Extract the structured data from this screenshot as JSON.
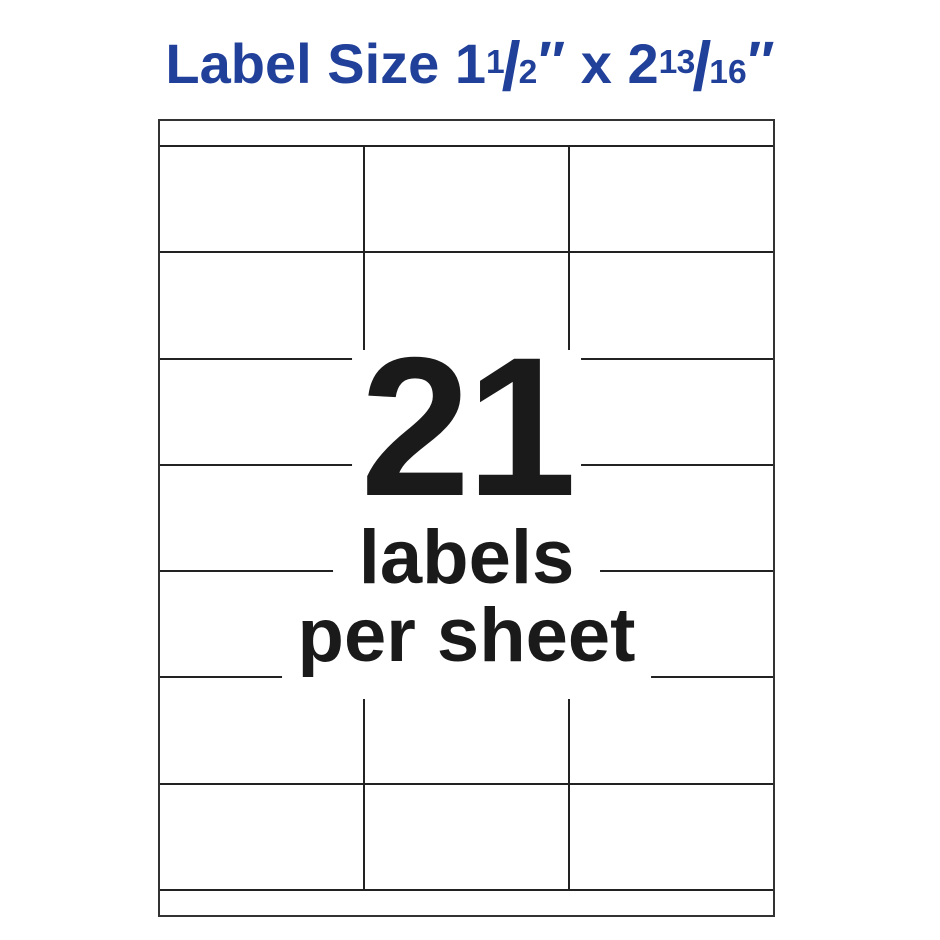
{
  "title": {
    "prefix": "Label Size ",
    "width": {
      "whole": "1",
      "numerator": "1",
      "denominator": "2"
    },
    "separator": " x ",
    "height": {
      "whole": "2",
      "numerator": "13",
      "denominator": "16"
    },
    "slash": "/",
    "inch_mark": "″"
  },
  "sheet": {
    "rows": 7,
    "columns": 3,
    "total_labels": 21,
    "center_label": {
      "count": "21",
      "line1": "labels",
      "line2": "per sheet"
    }
  },
  "colors": {
    "title_blue": "#21409A",
    "ink": "#1A1A1A",
    "grid_line": "#222222",
    "sheet_border": "#333333",
    "background": "#FFFFFF"
  }
}
